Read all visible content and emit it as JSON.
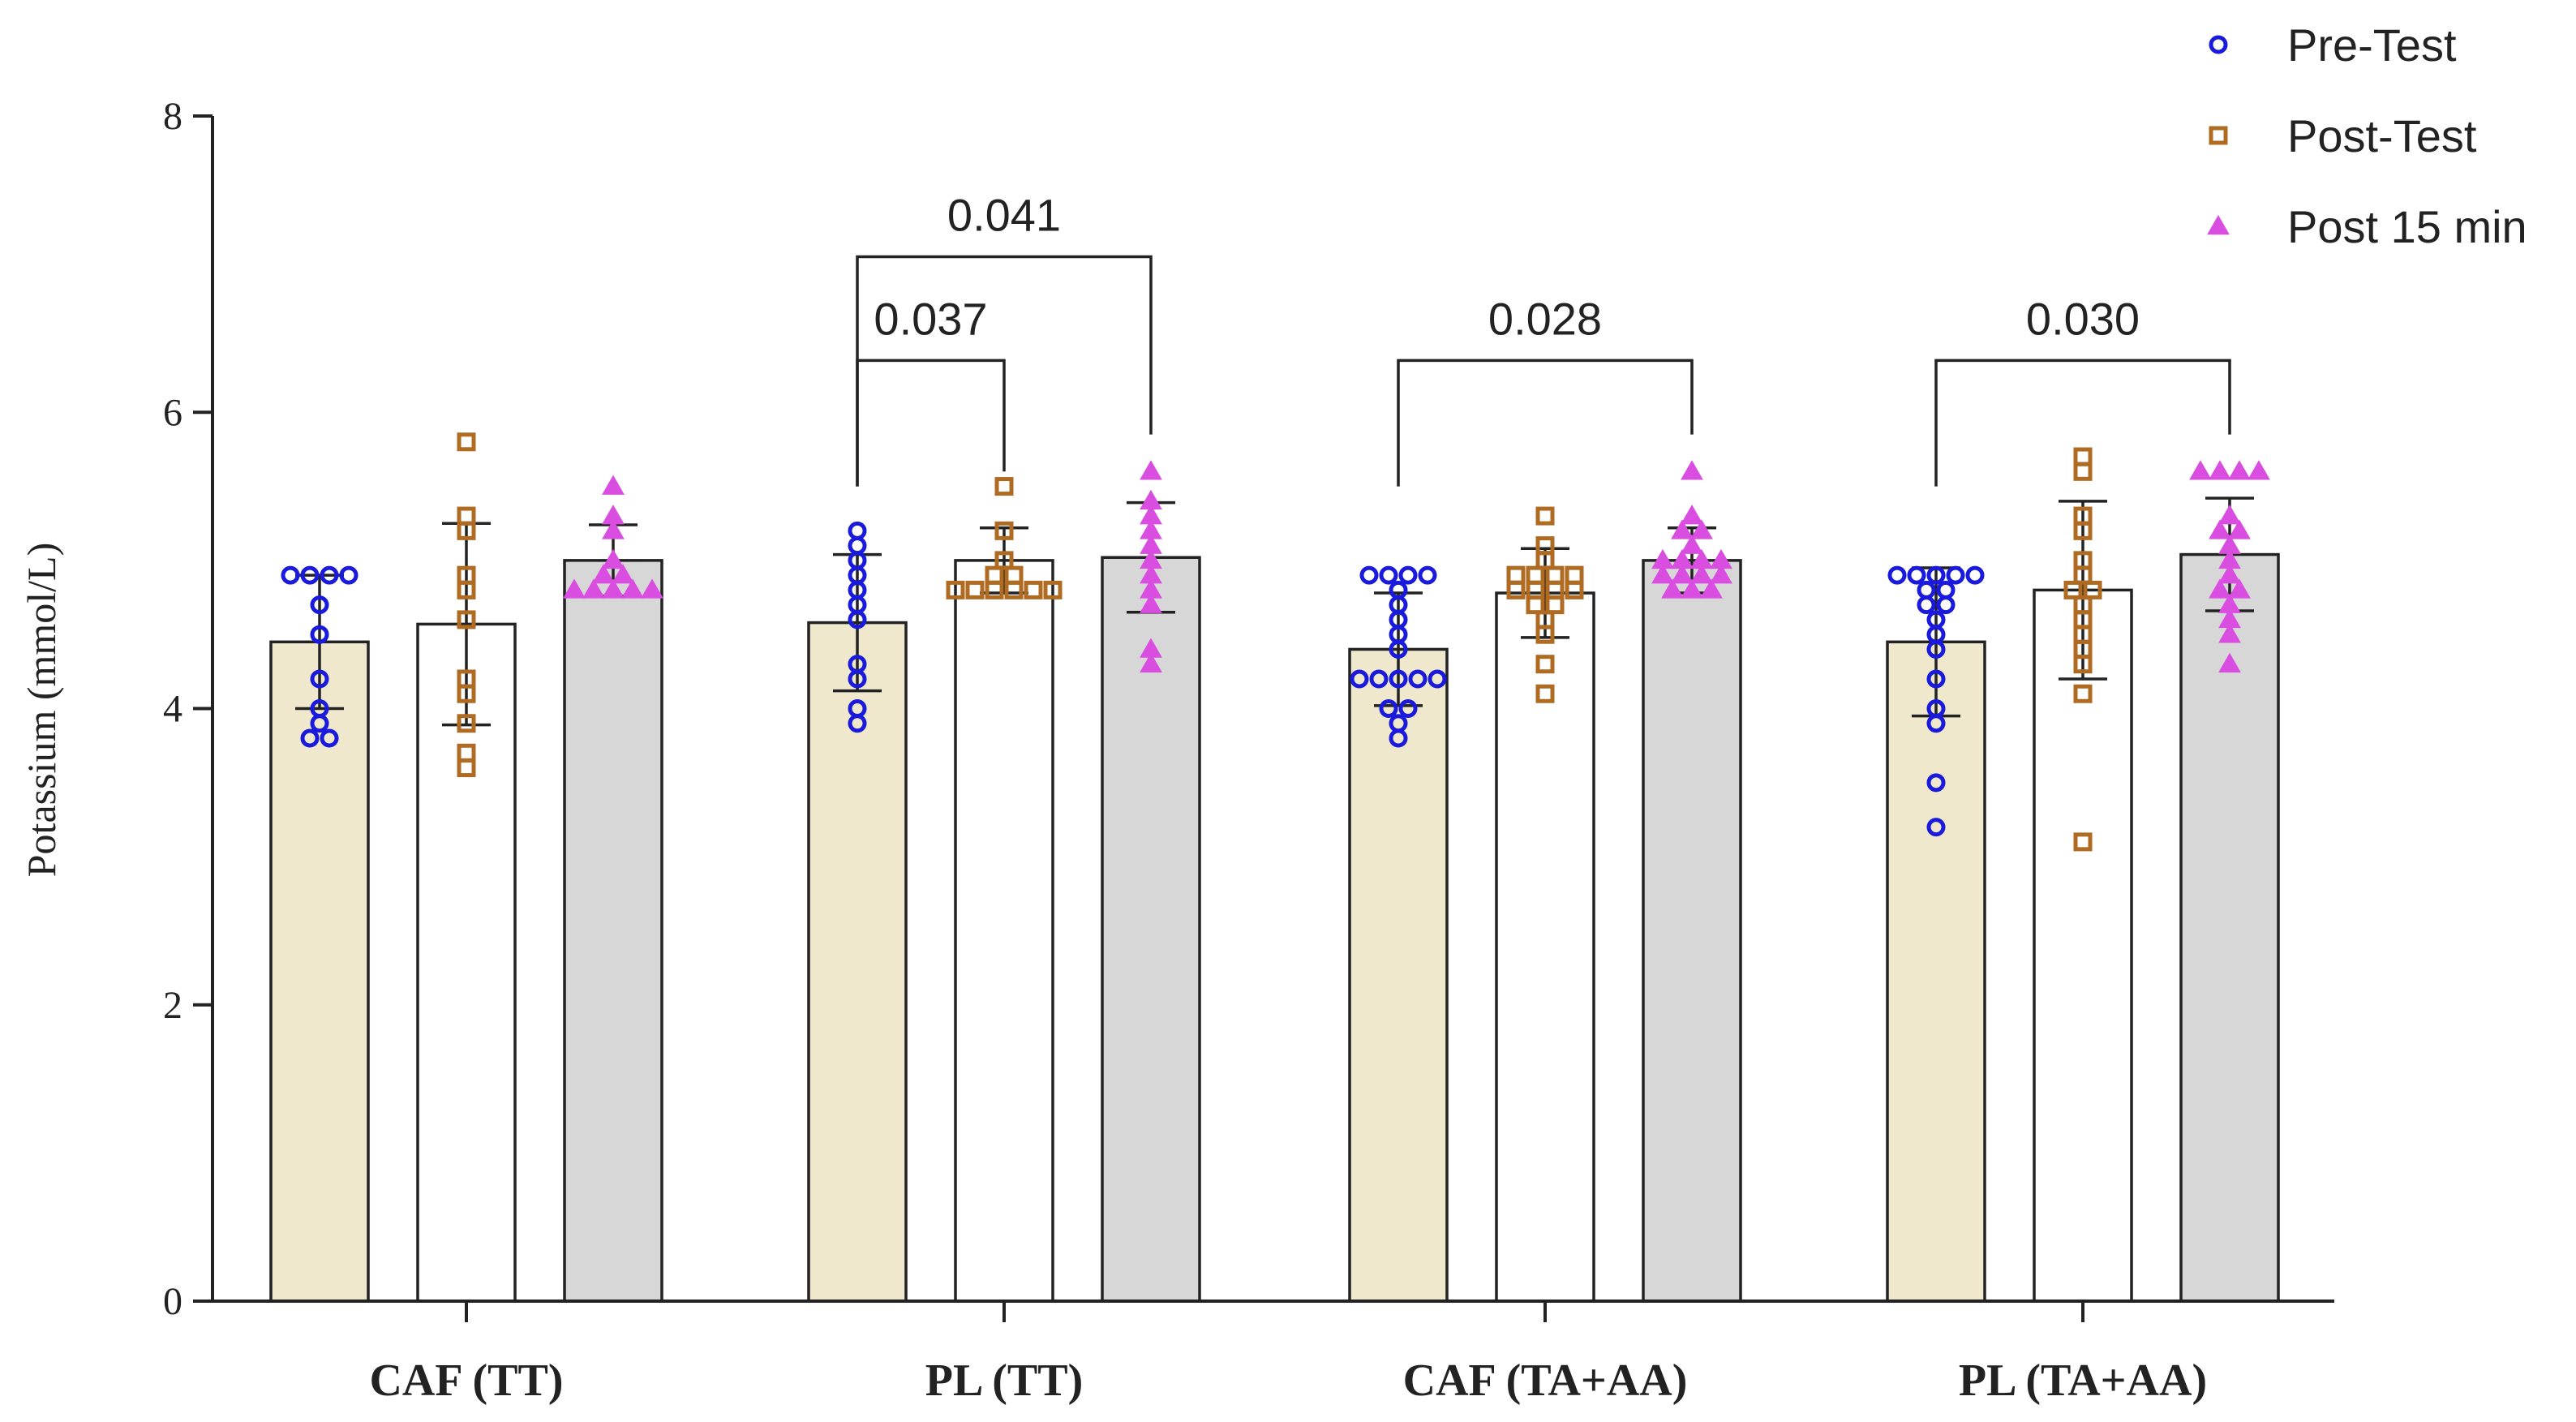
{
  "chart_data": {
    "type": "bar",
    "title": "",
    "xlabel": "",
    "ylabel": "Potassium  (mmol/L)",
    "ylim": [
      0,
      8
    ],
    "yticks": [
      0,
      2,
      4,
      6,
      8
    ],
    "categories": [
      "CAF (TT)",
      "PL (TT)",
      "CAF (TA+AA)",
      "PL (TA+AA)"
    ],
    "series": [
      {
        "name": "Pre-Test",
        "bar_color": "#efe8cd",
        "marker_color": "#1a1adc",
        "marker": "circle",
        "values": [
          4.45,
          4.58,
          4.4,
          4.45
        ],
        "sd": [
          0.45,
          0.46,
          0.38,
          0.5
        ],
        "points": [
          [
            4.9,
            4.9,
            4.9,
            4.9,
            4.7,
            4.5,
            4.2,
            4.0,
            3.9,
            3.8,
            3.8
          ],
          [
            5.2,
            5.1,
            5.0,
            4.9,
            4.8,
            4.7,
            4.6,
            4.3,
            4.2,
            4.0,
            3.9
          ],
          [
            4.9,
            4.9,
            4.9,
            4.9,
            4.8,
            4.7,
            4.6,
            4.5,
            4.4,
            4.2,
            4.2,
            4.2,
            4.2,
            4.2,
            4.0,
            4.0,
            3.9,
            3.8
          ],
          [
            4.9,
            4.9,
            4.9,
            4.9,
            4.9,
            4.8,
            4.8,
            4.7,
            4.7,
            4.6,
            4.5,
            4.4,
            4.2,
            4.0,
            3.9,
            3.5,
            3.2
          ]
        ]
      },
      {
        "name": "Post-Test",
        "bar_color": "#ffffff",
        "marker_color": "#b06b22",
        "marker": "square",
        "values": [
          4.57,
          5.0,
          4.78,
          4.8
        ],
        "sd": [
          0.68,
          0.22,
          0.3,
          0.6
        ],
        "points": [
          [
            5.8,
            5.3,
            5.2,
            4.9,
            4.8,
            4.6,
            4.2,
            4.1,
            3.9,
            3.7,
            3.6
          ],
          [
            5.5,
            5.2,
            5.0,
            4.9,
            4.9,
            4.8,
            4.8,
            4.8,
            4.8,
            4.8,
            4.8
          ],
          [
            5.3,
            5.1,
            5.0,
            4.9,
            4.9,
            4.9,
            4.9,
            4.8,
            4.8,
            4.8,
            4.8,
            4.7,
            4.7,
            4.6,
            4.5,
            4.3,
            4.1
          ],
          [
            5.7,
            5.6,
            5.3,
            5.2,
            5.0,
            4.9,
            4.8,
            4.8,
            4.7,
            4.6,
            4.5,
            4.4,
            4.3,
            4.1,
            3.1
          ]
        ]
      },
      {
        "name": "Post 15 min",
        "bar_color": "#d7d7d7",
        "marker_color": "#d94ee0",
        "marker": "triangle",
        "values": [
          5.0,
          5.02,
          5.0,
          5.04
        ],
        "sd": [
          0.24,
          0.37,
          0.22,
          0.38
        ],
        "points": [
          [
            5.5,
            5.3,
            5.2,
            5.0,
            4.9,
            4.9,
            4.8,
            4.8,
            4.8,
            4.8,
            4.8
          ],
          [
            5.6,
            5.4,
            5.3,
            5.2,
            5.1,
            5.0,
            4.9,
            4.8,
            4.7,
            4.4,
            4.3
          ],
          [
            5.6,
            5.3,
            5.2,
            5.2,
            5.1,
            5.0,
            5.0,
            5.0,
            5.0,
            4.9,
            4.9,
            4.9,
            4.9,
            4.8,
            4.8,
            4.8
          ],
          [
            5.6,
            5.6,
            5.6,
            5.6,
            5.3,
            5.2,
            5.2,
            5.1,
            5.0,
            4.9,
            4.8,
            4.8,
            4.7,
            4.6,
            4.5,
            4.3
          ]
        ]
      }
    ],
    "comparisons": [
      {
        "group": 1,
        "from": 0,
        "to": 2,
        "p": "0.041",
        "y": 7.05
      },
      {
        "group": 1,
        "from": 0,
        "to": 1,
        "p": "0.037",
        "y": 6.35
      },
      {
        "group": 2,
        "from": 0,
        "to": 2,
        "p": "0.028",
        "y": 6.35
      },
      {
        "group": 3,
        "from": 0,
        "to": 2,
        "p": "0.030",
        "y": 6.35
      }
    ],
    "legend": {
      "position": "top-right",
      "entries": [
        "Pre-Test",
        "Post-Test",
        "Post 15 min"
      ]
    }
  }
}
